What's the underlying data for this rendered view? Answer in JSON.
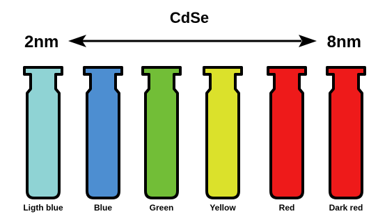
{
  "title": "CdSe",
  "size_range": {
    "min_label": "2nm",
    "max_label": "8nm"
  },
  "vials": [
    {
      "label": "Ligth blue",
      "color": "#8fd3d4"
    },
    {
      "label": "Blue",
      "color": "#4d8ed1"
    },
    {
      "label": "Green",
      "color": "#72be37"
    },
    {
      "label": "Yellow",
      "color": "#dbe12b"
    },
    {
      "label": "Red",
      "color": "#ee1a1a"
    },
    {
      "label": "Dark red",
      "color": "#ee1a1a"
    }
  ],
  "outline_color": "#000000"
}
